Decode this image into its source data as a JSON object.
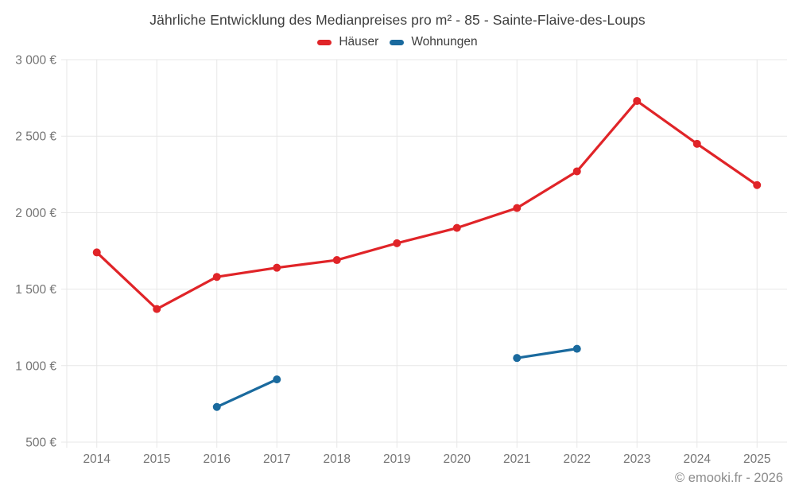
{
  "title": "Jährliche Entwicklung des Medianpreises pro m² - 85 - Sainte-Flaive-des-Loups",
  "legend": {
    "items": [
      {
        "label": "Häuser",
        "color": "#e02428"
      },
      {
        "label": "Wohnungen",
        "color": "#1a6a9e"
      }
    ]
  },
  "footer": {
    "copyright": "© emooki.fr - 2026"
  },
  "colors": {
    "haeuser": "#e02428",
    "wohnungen": "#1a6a9e",
    "grid": "#e7e7e7",
    "axis_text": "#757575",
    "title_text": "#3e3e3e",
    "footer_text": "#8c8c8c"
  },
  "chart_data": {
    "type": "line",
    "title": "Jährliche Entwicklung des Medianpreises pro m² - 85 - Sainte-Flaive-des-Loups",
    "categories": [
      "2014",
      "2015",
      "2016",
      "2017",
      "2018",
      "2019",
      "2020",
      "2021",
      "2022",
      "2023",
      "2024",
      "2025"
    ],
    "series": [
      {
        "name": "Häuser",
        "color": "#e02428",
        "values": [
          1740,
          1370,
          1580,
          1640,
          1690,
          1800,
          1900,
          2030,
          2270,
          2730,
          2450,
          2180
        ]
      },
      {
        "name": "Wohnungen",
        "color": "#1a6a9e",
        "values": [
          null,
          null,
          730,
          910,
          null,
          null,
          null,
          1050,
          1110,
          null,
          null,
          null
        ]
      }
    ],
    "xlabel": "",
    "ylabel": "",
    "ylim": [
      500,
      3000
    ],
    "ytick_step": 500,
    "ytick_labels": [
      "500 €",
      "1 000 €",
      "1 500 €",
      "2 000 €",
      "2 500 €",
      "3 000 €"
    ],
    "grid": true,
    "legend_position": "top",
    "marker_radius": 5,
    "line_width": 3.2
  }
}
